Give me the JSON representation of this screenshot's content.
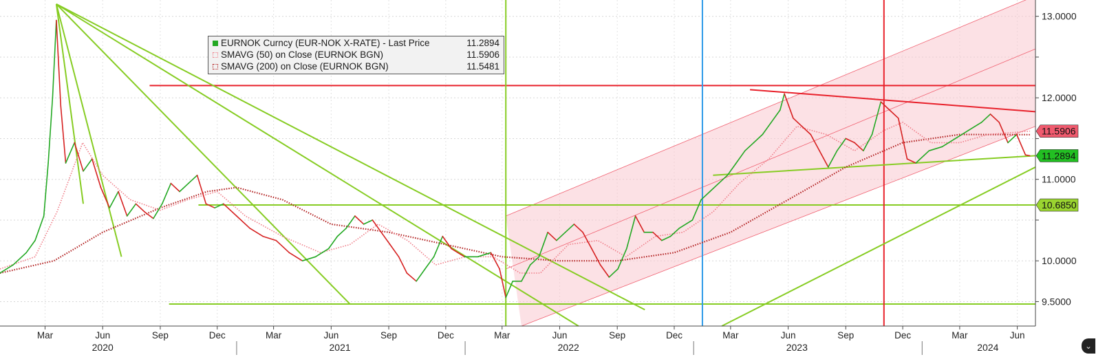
{
  "chart_data": {
    "type": "line",
    "instrument": "EURNOK Curncy (EUR-NOK X-RATE)",
    "title": "",
    "xlabel": "",
    "ylabel": "",
    "ylim": [
      9.2,
      13.2
    ],
    "y_ticks": [
      {
        "value": 9.5,
        "label": "9.5000"
      },
      {
        "value": 10.0,
        "label": "10.0000"
      },
      {
        "value": 10.5,
        "label": ""
      },
      {
        "value": 11.0,
        "label": "11.0000"
      },
      {
        "value": 11.5,
        "label": ""
      },
      {
        "value": 12.0,
        "label": "12.0000"
      },
      {
        "value": 12.5,
        "label": ""
      },
      {
        "value": 13.0,
        "label": "13.0000"
      }
    ],
    "x_range": [
      "2019-12-20",
      "2024-06-30"
    ],
    "month_ticks": [
      {
        "date": "2020-03-01",
        "label": "Mar"
      },
      {
        "date": "2020-06-01",
        "label": "Jun"
      },
      {
        "date": "2020-09-01",
        "label": "Sep"
      },
      {
        "date": "2020-12-01",
        "label": "Dec"
      },
      {
        "date": "2021-03-01",
        "label": "Mar"
      },
      {
        "date": "2021-06-01",
        "label": "Jun"
      },
      {
        "date": "2021-09-01",
        "label": "Sep"
      },
      {
        "date": "2021-12-01",
        "label": "Dec"
      },
      {
        "date": "2022-03-01",
        "label": "Mar"
      },
      {
        "date": "2022-06-01",
        "label": "Jun"
      },
      {
        "date": "2022-09-01",
        "label": "Sep"
      },
      {
        "date": "2022-12-01",
        "label": "Dec"
      },
      {
        "date": "2023-03-01",
        "label": "Mar"
      },
      {
        "date": "2023-06-01",
        "label": "Jun"
      },
      {
        "date": "2023-09-01",
        "label": "Sep"
      },
      {
        "date": "2023-12-01",
        "label": "Dec"
      },
      {
        "date": "2024-03-01",
        "label": "Mar"
      },
      {
        "date": "2024-06-01",
        "label": "Jun"
      }
    ],
    "year_labels": [
      {
        "date": "2020-06-01",
        "label": "2020"
      },
      {
        "date": "2021-06-15",
        "label": "2021"
      },
      {
        "date": "2022-06-15",
        "label": "2022"
      },
      {
        "date": "2023-06-15",
        "label": "2023"
      },
      {
        "date": "2024-04-15",
        "label": "2024"
      }
    ],
    "year_separators": [
      "2021-01-01",
      "2022-01-01",
      "2023-01-01",
      "2024-01-01"
    ],
    "grid": true,
    "legend_position": "top-left",
    "price_series": {
      "name": "EURNOK Curncy (EUR-NOK X-RATE) - Last Price",
      "color_up": "#22a822",
      "color_down": "#d62020",
      "points": [
        [
          "2019-12-20",
          9.85
        ],
        [
          "2020-01-10",
          9.95
        ],
        [
          "2020-01-31",
          10.1
        ],
        [
          "2020-02-14",
          10.25
        ],
        [
          "2020-02-28",
          10.55
        ],
        [
          "2020-03-06",
          11.2
        ],
        [
          "2020-03-13",
          12.0
        ],
        [
          "2020-03-19",
          12.95
        ],
        [
          "2020-03-26",
          11.9
        ],
        [
          "2020-04-03",
          11.2
        ],
        [
          "2020-04-17",
          11.45
        ],
        [
          "2020-05-01",
          11.1
        ],
        [
          "2020-05-15",
          11.25
        ],
        [
          "2020-05-29",
          10.9
        ],
        [
          "2020-06-12",
          10.65
        ],
        [
          "2020-06-26",
          10.85
        ],
        [
          "2020-07-10",
          10.55
        ],
        [
          "2020-07-24",
          10.7
        ],
        [
          "2020-08-07",
          10.6
        ],
        [
          "2020-08-21",
          10.52
        ],
        [
          "2020-09-04",
          10.7
        ],
        [
          "2020-09-18",
          10.95
        ],
        [
          "2020-10-02",
          10.85
        ],
        [
          "2020-10-16",
          10.95
        ],
        [
          "2020-10-30",
          11.05
        ],
        [
          "2020-11-13",
          10.7
        ],
        [
          "2020-11-27",
          10.65
        ],
        [
          "2020-12-11",
          10.7
        ],
        [
          "2021-01-01",
          10.55
        ],
        [
          "2021-01-22",
          10.4
        ],
        [
          "2021-02-12",
          10.3
        ],
        [
          "2021-03-05",
          10.25
        ],
        [
          "2021-03-26",
          10.1
        ],
        [
          "2021-04-16",
          10.0
        ],
        [
          "2021-05-07",
          10.05
        ],
        [
          "2021-05-28",
          10.15
        ],
        [
          "2021-06-11",
          10.3
        ],
        [
          "2021-06-25",
          10.4
        ],
        [
          "2021-07-09",
          10.55
        ],
        [
          "2021-07-23",
          10.45
        ],
        [
          "2021-08-06",
          10.5
        ],
        [
          "2021-08-20",
          10.35
        ],
        [
          "2021-09-03",
          10.2
        ],
        [
          "2021-09-17",
          10.05
        ],
        [
          "2021-09-30",
          9.85
        ],
        [
          "2021-10-15",
          9.75
        ],
        [
          "2021-10-29",
          9.9
        ],
        [
          "2021-11-12",
          10.05
        ],
        [
          "2021-11-26",
          10.3
        ],
        [
          "2021-12-10",
          10.15
        ],
        [
          "2021-12-31",
          10.05
        ],
        [
          "2022-01-21",
          10.05
        ],
        [
          "2022-02-11",
          10.1
        ],
        [
          "2022-02-25",
          9.9
        ],
        [
          "2022-03-07",
          9.55
        ],
        [
          "2022-03-18",
          9.75
        ],
        [
          "2022-04-01",
          9.75
        ],
        [
          "2022-04-15",
          9.95
        ],
        [
          "2022-04-29",
          10.05
        ],
        [
          "2022-05-13",
          10.35
        ],
        [
          "2022-05-27",
          10.25
        ],
        [
          "2022-06-10",
          10.35
        ],
        [
          "2022-06-24",
          10.45
        ],
        [
          "2022-07-08",
          10.35
        ],
        [
          "2022-07-22",
          10.15
        ],
        [
          "2022-08-05",
          9.95
        ],
        [
          "2022-08-19",
          9.8
        ],
        [
          "2022-09-02",
          9.9
        ],
        [
          "2022-09-16",
          10.15
        ],
        [
          "2022-09-30",
          10.55
        ],
        [
          "2022-10-14",
          10.35
        ],
        [
          "2022-10-28",
          10.35
        ],
        [
          "2022-11-11",
          10.25
        ],
        [
          "2022-11-25",
          10.3
        ],
        [
          "2022-12-09",
          10.4
        ],
        [
          "2022-12-30",
          10.5
        ],
        [
          "2023-01-13",
          10.75
        ],
        [
          "2023-01-27",
          10.85
        ],
        [
          "2023-02-10",
          10.95
        ],
        [
          "2023-02-24",
          11.05
        ],
        [
          "2023-03-10",
          11.2
        ],
        [
          "2023-03-24",
          11.35
        ],
        [
          "2023-04-07",
          11.45
        ],
        [
          "2023-04-21",
          11.55
        ],
        [
          "2023-05-05",
          11.7
        ],
        [
          "2023-05-19",
          11.85
        ],
        [
          "2023-05-26",
          12.05
        ],
        [
          "2023-06-09",
          11.75
        ],
        [
          "2023-06-23",
          11.65
        ],
        [
          "2023-07-07",
          11.55
        ],
        [
          "2023-07-21",
          11.35
        ],
        [
          "2023-08-04",
          11.15
        ],
        [
          "2023-08-18",
          11.35
        ],
        [
          "2023-09-01",
          11.5
        ],
        [
          "2023-09-15",
          11.45
        ],
        [
          "2023-09-29",
          11.35
        ],
        [
          "2023-10-13",
          11.55
        ],
        [
          "2023-10-27",
          11.95
        ],
        [
          "2023-11-10",
          11.85
        ],
        [
          "2023-11-24",
          11.75
        ],
        [
          "2023-12-08",
          11.25
        ],
        [
          "2023-12-22",
          11.2
        ],
        [
          "2024-01-12",
          11.35
        ],
        [
          "2024-02-02",
          11.4
        ],
        [
          "2024-02-23",
          11.5
        ],
        [
          "2024-03-15",
          11.6
        ],
        [
          "2024-04-05",
          11.7
        ],
        [
          "2024-04-19",
          11.8
        ],
        [
          "2024-05-03",
          11.7
        ],
        [
          "2024-05-17",
          11.45
        ],
        [
          "2024-05-31",
          11.55
        ],
        [
          "2024-06-14",
          11.3
        ],
        [
          "2024-06-21",
          11.2894
        ]
      ]
    },
    "sma_50": {
      "name": "SMAVG (50)  on Close (EURNOK BGN)",
      "color": "#ef7b86",
      "points": [
        [
          "2019-12-20",
          9.9
        ],
        [
          "2020-02-14",
          10.05
        ],
        [
          "2020-03-20",
          10.6
        ],
        [
          "2020-04-30",
          11.45
        ],
        [
          "2020-06-01",
          11.05
        ],
        [
          "2020-07-15",
          10.75
        ],
        [
          "2020-09-01",
          10.62
        ],
        [
          "2020-10-15",
          10.75
        ],
        [
          "2020-12-01",
          10.85
        ],
        [
          "2021-01-15",
          10.55
        ],
        [
          "2021-03-15",
          10.3
        ],
        [
          "2021-05-15",
          10.1
        ],
        [
          "2021-07-01",
          10.2
        ],
        [
          "2021-08-15",
          10.45
        ],
        [
          "2021-10-01",
          10.25
        ],
        [
          "2021-11-15",
          9.95
        ],
        [
          "2022-01-01",
          10.05
        ],
        [
          "2022-02-15",
          10.05
        ],
        [
          "2022-03-30",
          9.85
        ],
        [
          "2022-05-01",
          9.85
        ],
        [
          "2022-06-15",
          10.2
        ],
        [
          "2022-08-01",
          10.25
        ],
        [
          "2022-09-15",
          10.05
        ],
        [
          "2022-11-01",
          10.3
        ],
        [
          "2022-12-15",
          10.35
        ],
        [
          "2023-02-01",
          10.6
        ],
        [
          "2023-03-15",
          10.95
        ],
        [
          "2023-05-01",
          11.25
        ],
        [
          "2023-06-15",
          11.65
        ],
        [
          "2023-08-01",
          11.55
        ],
        [
          "2023-09-15",
          11.35
        ],
        [
          "2023-11-01",
          11.6
        ],
        [
          "2023-12-01",
          11.7
        ],
        [
          "2024-01-15",
          11.45
        ],
        [
          "2024-03-01",
          11.45
        ],
        [
          "2024-04-15",
          11.55
        ],
        [
          "2024-06-21",
          11.5906
        ]
      ]
    },
    "sma_200": {
      "name": "SMAVG (200)  on Close (EURNOK BGN)",
      "color": "#b22222",
      "points": [
        [
          "2019-12-20",
          9.85
        ],
        [
          "2020-03-15",
          10.0
        ],
        [
          "2020-06-01",
          10.35
        ],
        [
          "2020-09-01",
          10.65
        ],
        [
          "2020-11-15",
          10.85
        ],
        [
          "2021-01-01",
          10.9
        ],
        [
          "2021-03-15",
          10.75
        ],
        [
          "2021-06-01",
          10.45
        ],
        [
          "2021-09-01",
          10.35
        ],
        [
          "2021-12-01",
          10.2
        ],
        [
          "2022-03-01",
          10.05
        ],
        [
          "2022-06-01",
          10.0
        ],
        [
          "2022-09-01",
          10.0
        ],
        [
          "2022-12-01",
          10.1
        ],
        [
          "2023-03-01",
          10.35
        ],
        [
          "2023-06-01",
          10.75
        ],
        [
          "2023-09-01",
          11.15
        ],
        [
          "2023-12-01",
          11.45
        ],
        [
          "2024-03-01",
          11.55
        ],
        [
          "2024-06-21",
          11.5481
        ]
      ]
    },
    "legend": [
      {
        "label": "EURNOK Curncy (EUR-NOK X-RATE) - Last Price",
        "value": "11.2894",
        "color": "#22a822"
      },
      {
        "label": "SMAVG (50)  on Close (EURNOK BGN)",
        "value": "11.5906",
        "color": "#ef7b86"
      },
      {
        "label": "SMAVG (200)  on Close (EURNOK BGN)",
        "value": "11.5481",
        "color": "#b22222"
      }
    ],
    "price_tags": [
      {
        "value": 11.5906,
        "label": "11.5906",
        "color": "#f05a6e"
      },
      {
        "value": 11.2894,
        "label": "11.2894",
        "color": "#22c022"
      },
      {
        "value": 10.685,
        "label": "10.6850",
        "color": "#9ad430"
      }
    ],
    "annotations": {
      "horizontal_lines": [
        {
          "value": 12.15,
          "from": "2020-08-15",
          "to": "2024-06-30",
          "color": "#e8202a"
        },
        {
          "value": 10.685,
          "from": "2020-11-01",
          "to": "2024-06-30",
          "color": "#86cc22"
        },
        {
          "value": 9.47,
          "from": "2020-09-15",
          "to": "2024-06-30",
          "color": "#86cc22"
        }
      ],
      "vertical_lines": [
        {
          "date": "2022-03-07",
          "color": "#86cc22"
        },
        {
          "date": "2023-01-15",
          "color": "#2f9be8"
        },
        {
          "date": "2023-11-01",
          "color": "#e8202a"
        }
      ],
      "trend_lines": [
        {
          "from": [
            "2020-03-19",
            13.15
          ],
          "to": [
            "2020-05-01",
            10.7
          ],
          "color": "#86cc22"
        },
        {
          "from": [
            "2020-03-19",
            13.15
          ],
          "to": [
            "2020-07-01",
            10.05
          ],
          "color": "#86cc22"
        },
        {
          "from": [
            "2020-03-19",
            13.15
          ],
          "to": [
            "2021-07-01",
            9.47
          ],
          "color": "#86cc22"
        },
        {
          "from": [
            "2020-03-19",
            13.15
          ],
          "to": [
            "2022-07-01",
            9.2
          ],
          "color": "#86cc22"
        },
        {
          "from": [
            "2020-03-19",
            13.15
          ],
          "to": [
            "2022-10-15",
            9.4
          ],
          "color": "#86cc22"
        },
        {
          "from": [
            "2023-02-01",
            11.05
          ],
          "to": [
            "2024-06-30",
            11.29
          ],
          "color": "#86cc22"
        },
        {
          "from": [
            "2023-02-15",
            9.2
          ],
          "to": [
            "2024-06-30",
            11.15
          ],
          "color": "#86cc22"
        },
        {
          "from": [
            "2023-04-01",
            12.1
          ],
          "to": [
            "2024-06-30",
            11.83
          ],
          "color": "#e8202a"
        }
      ],
      "channel": {
        "color": "#f9c8d0",
        "edge": "#f06070",
        "upper": [
          [
            "2022-03-07",
            10.55
          ],
          [
            "2024-06-30",
            13.25
          ]
        ],
        "mid": [
          [
            "2022-03-07",
            9.9
          ],
          [
            "2024-06-30",
            12.6
          ]
        ],
        "lower": [
          [
            "2022-04-01",
            9.2
          ],
          [
            "2024-06-30",
            11.65
          ]
        ]
      }
    }
  }
}
